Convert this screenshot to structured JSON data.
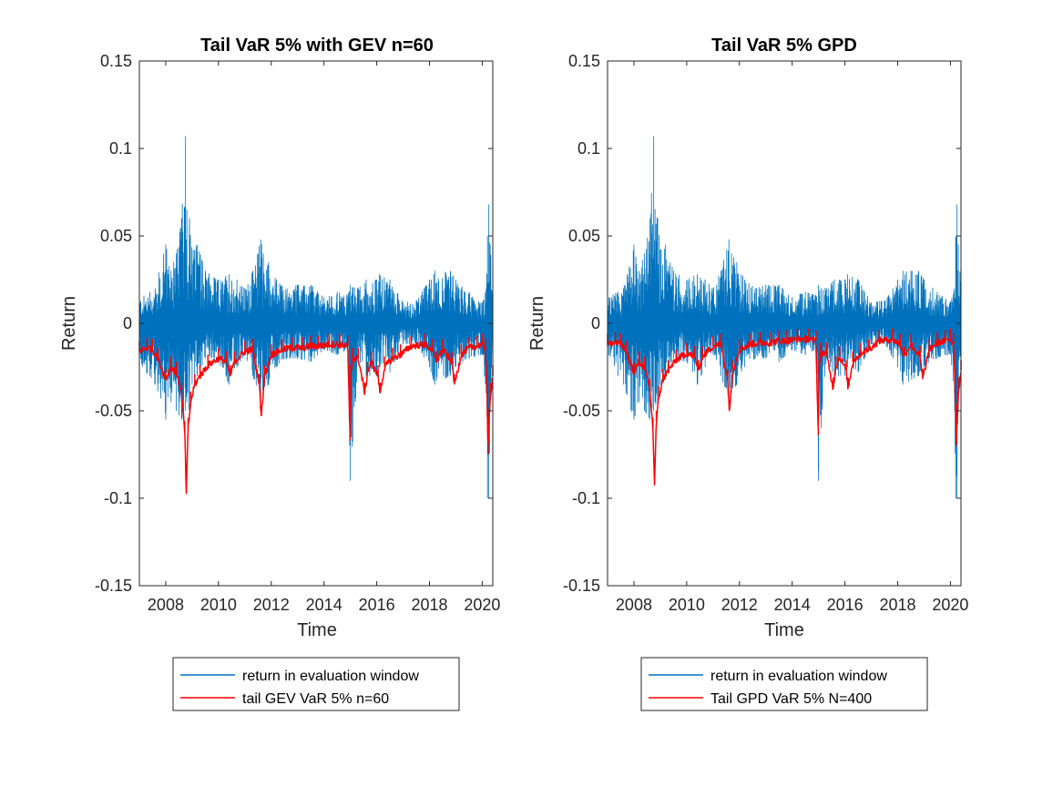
{
  "chart_data": [
    {
      "type": "line",
      "title": "Tail VaR 5% with GEV n=60",
      "xlabel": "Time",
      "ylabel": "Return",
      "xlim": [
        2007.0,
        2020.4
      ],
      "ylim": [
        -0.15,
        0.15
      ],
      "xticks": [
        "2008",
        "2010",
        "2012",
        "2014",
        "2016",
        "2018",
        "2020"
      ],
      "yticks": [
        "-0.15",
        "-0.1",
        "-0.05",
        "0",
        "0.05",
        "0.1",
        "0.15"
      ],
      "grid": false,
      "legend_position": "below-axes",
      "series": [
        {
          "name": "return in evaluation window",
          "color": "#0072BD",
          "x": [
            2007.0,
            2007.4,
            2007.6,
            2008.0,
            2008.2,
            2008.4,
            2008.6,
            2008.75,
            2008.8,
            2008.9,
            2009.0,
            2009.2,
            2009.5,
            2010.0,
            2010.4,
            2010.7,
            2011.0,
            2011.3,
            2011.6,
            2011.7,
            2011.9,
            2012.2,
            2012.6,
            2013.0,
            2013.5,
            2014.0,
            2014.5,
            2014.9,
            2015.0,
            2015.3,
            2015.6,
            2016.0,
            2016.1,
            2016.5,
            2017.0,
            2017.5,
            2018.0,
            2018.2,
            2018.8,
            2019.0,
            2019.5,
            2020.0,
            2020.15,
            2020.2,
            2020.25,
            2020.3,
            2020.4
          ],
          "high": [
            0.015,
            0.018,
            0.02,
            0.045,
            0.03,
            0.04,
            0.06,
            0.107,
            0.065,
            0.06,
            0.042,
            0.045,
            0.03,
            0.025,
            0.028,
            0.025,
            0.02,
            0.03,
            0.048,
            0.04,
            0.035,
            0.025,
            0.02,
            0.022,
            0.022,
            0.015,
            0.018,
            0.016,
            0.022,
            0.02,
            0.025,
            0.025,
            0.028,
            0.025,
            0.012,
            0.013,
            0.025,
            0.03,
            0.03,
            0.025,
            0.018,
            0.012,
            0.02,
            0.05,
            0.068,
            0.045,
            0.02
          ],
          "low": [
            -0.025,
            -0.03,
            -0.035,
            -0.055,
            -0.045,
            -0.05,
            -0.055,
            -0.05,
            -0.045,
            -0.05,
            -0.035,
            -0.03,
            -0.02,
            -0.022,
            -0.035,
            -0.025,
            -0.018,
            -0.03,
            -0.045,
            -0.04,
            -0.035,
            -0.025,
            -0.02,
            -0.02,
            -0.022,
            -0.015,
            -0.018,
            -0.015,
            -0.09,
            -0.02,
            -0.03,
            -0.03,
            -0.025,
            -0.028,
            -0.012,
            -0.012,
            -0.025,
            -0.035,
            -0.03,
            -0.025,
            -0.02,
            -0.018,
            -0.04,
            -0.1,
            -0.1,
            -0.05,
            -0.02
          ]
        },
        {
          "name": "tail GEV VaR 5% n=60",
          "color": "#FF0000",
          "x": [
            2007.0,
            2007.3,
            2007.5,
            2007.7,
            2008.0,
            2008.2,
            2008.4,
            2008.6,
            2008.72,
            2008.78,
            2008.85,
            2008.95,
            2009.1,
            2009.3,
            2009.6,
            2010.0,
            2010.3,
            2010.45,
            2010.6,
            2011.0,
            2011.3,
            2011.55,
            2011.62,
            2011.75,
            2012.0,
            2012.4,
            2012.8,
            2013.2,
            2013.5,
            2013.8,
            2014.2,
            2014.6,
            2014.9,
            2014.99,
            2015.02,
            2015.08,
            2015.3,
            2015.55,
            2015.65,
            2015.8,
            2016.05,
            2016.12,
            2016.3,
            2016.6,
            2016.9,
            2017.3,
            2017.8,
            2018.1,
            2018.25,
            2018.5,
            2018.85,
            2018.95,
            2019.2,
            2019.5,
            2019.8,
            2020.0,
            2020.12,
            2020.18,
            2020.22,
            2020.26,
            2020.32,
            2020.4
          ],
          "y": [
            -0.016,
            -0.014,
            -0.015,
            -0.02,
            -0.032,
            -0.025,
            -0.028,
            -0.04,
            -0.062,
            -0.097,
            -0.06,
            -0.045,
            -0.035,
            -0.03,
            -0.024,
            -0.02,
            -0.022,
            -0.03,
            -0.022,
            -0.016,
            -0.015,
            -0.035,
            -0.053,
            -0.03,
            -0.018,
            -0.015,
            -0.014,
            -0.014,
            -0.013,
            -0.013,
            -0.012,
            -0.012,
            -0.013,
            -0.067,
            -0.03,
            -0.02,
            -0.02,
            -0.04,
            -0.028,
            -0.022,
            -0.03,
            -0.04,
            -0.025,
            -0.02,
            -0.018,
            -0.013,
            -0.012,
            -0.015,
            -0.022,
            -0.015,
            -0.022,
            -0.035,
            -0.018,
            -0.014,
            -0.013,
            -0.012,
            -0.015,
            -0.035,
            -0.075,
            -0.055,
            -0.04,
            -0.03
          ]
        }
      ]
    },
    {
      "type": "line",
      "title": "Tail VaR 5% GPD",
      "xlabel": "Time",
      "ylabel": "Return",
      "xlim": [
        2007.0,
        2020.4
      ],
      "ylim": [
        -0.15,
        0.15
      ],
      "xticks": [
        "2008",
        "2010",
        "2012",
        "2014",
        "2016",
        "2018",
        "2020"
      ],
      "yticks": [
        "-0.15",
        "-0.1",
        "-0.05",
        "0",
        "0.05",
        "0.1",
        "0.15"
      ],
      "grid": false,
      "legend_position": "below-axes",
      "series": [
        {
          "name": "return in evaluation window",
          "color": "#0072BD",
          "x": [
            2007.0,
            2007.4,
            2007.6,
            2008.0,
            2008.2,
            2008.4,
            2008.6,
            2008.75,
            2008.8,
            2008.9,
            2009.0,
            2009.2,
            2009.5,
            2010.0,
            2010.4,
            2010.7,
            2011.0,
            2011.3,
            2011.6,
            2011.7,
            2011.9,
            2012.2,
            2012.6,
            2013.0,
            2013.5,
            2014.0,
            2014.5,
            2014.9,
            2015.0,
            2015.3,
            2015.6,
            2016.0,
            2016.1,
            2016.5,
            2017.0,
            2017.5,
            2018.0,
            2018.2,
            2018.8,
            2019.0,
            2019.5,
            2020.0,
            2020.15,
            2020.2,
            2020.25,
            2020.3,
            2020.4
          ],
          "high": [
            0.015,
            0.018,
            0.02,
            0.045,
            0.03,
            0.04,
            0.06,
            0.107,
            0.065,
            0.06,
            0.042,
            0.045,
            0.03,
            0.025,
            0.028,
            0.025,
            0.02,
            0.03,
            0.048,
            0.04,
            0.035,
            0.025,
            0.02,
            0.022,
            0.022,
            0.015,
            0.018,
            0.016,
            0.022,
            0.02,
            0.025,
            0.025,
            0.028,
            0.025,
            0.012,
            0.013,
            0.025,
            0.03,
            0.03,
            0.025,
            0.018,
            0.012,
            0.02,
            0.05,
            0.068,
            0.045,
            0.02
          ],
          "low": [
            -0.025,
            -0.03,
            -0.035,
            -0.055,
            -0.045,
            -0.05,
            -0.055,
            -0.05,
            -0.045,
            -0.05,
            -0.035,
            -0.03,
            -0.02,
            -0.022,
            -0.035,
            -0.025,
            -0.018,
            -0.03,
            -0.045,
            -0.04,
            -0.035,
            -0.025,
            -0.02,
            -0.02,
            -0.022,
            -0.015,
            -0.018,
            -0.015,
            -0.09,
            -0.02,
            -0.03,
            -0.03,
            -0.025,
            -0.028,
            -0.012,
            -0.012,
            -0.025,
            -0.035,
            -0.03,
            -0.025,
            -0.02,
            -0.018,
            -0.04,
            -0.1,
            -0.1,
            -0.05,
            -0.02
          ]
        },
        {
          "name": "Tail GPD VaR 5% N=400",
          "color": "#FF0000",
          "x": [
            2007.0,
            2007.3,
            2007.5,
            2007.7,
            2008.0,
            2008.2,
            2008.4,
            2008.6,
            2008.72,
            2008.78,
            2008.85,
            2008.95,
            2009.1,
            2009.3,
            2009.6,
            2010.0,
            2010.3,
            2010.45,
            2010.6,
            2011.0,
            2011.3,
            2011.55,
            2011.62,
            2011.75,
            2012.0,
            2012.4,
            2012.8,
            2013.2,
            2013.5,
            2013.8,
            2014.2,
            2014.6,
            2014.9,
            2014.99,
            2015.02,
            2015.08,
            2015.3,
            2015.55,
            2015.65,
            2015.8,
            2016.05,
            2016.12,
            2016.3,
            2016.6,
            2016.9,
            2017.3,
            2017.8,
            2018.1,
            2018.25,
            2018.5,
            2018.85,
            2018.95,
            2019.2,
            2019.5,
            2019.8,
            2020.0,
            2020.12,
            2020.18,
            2020.22,
            2020.26,
            2020.32,
            2020.4
          ],
          "y": [
            -0.012,
            -0.011,
            -0.012,
            -0.016,
            -0.028,
            -0.022,
            -0.025,
            -0.038,
            -0.06,
            -0.092,
            -0.056,
            -0.042,
            -0.032,
            -0.027,
            -0.021,
            -0.017,
            -0.019,
            -0.027,
            -0.019,
            -0.013,
            -0.012,
            -0.032,
            -0.05,
            -0.027,
            -0.015,
            -0.012,
            -0.011,
            -0.011,
            -0.01,
            -0.01,
            -0.009,
            -0.009,
            -0.01,
            -0.064,
            -0.027,
            -0.017,
            -0.017,
            -0.037,
            -0.025,
            -0.019,
            -0.027,
            -0.037,
            -0.022,
            -0.017,
            -0.015,
            -0.01,
            -0.009,
            -0.012,
            -0.019,
            -0.012,
            -0.019,
            -0.032,
            -0.015,
            -0.011,
            -0.01,
            -0.009,
            -0.012,
            -0.032,
            -0.07,
            -0.052,
            -0.037,
            -0.027
          ]
        }
      ]
    }
  ]
}
